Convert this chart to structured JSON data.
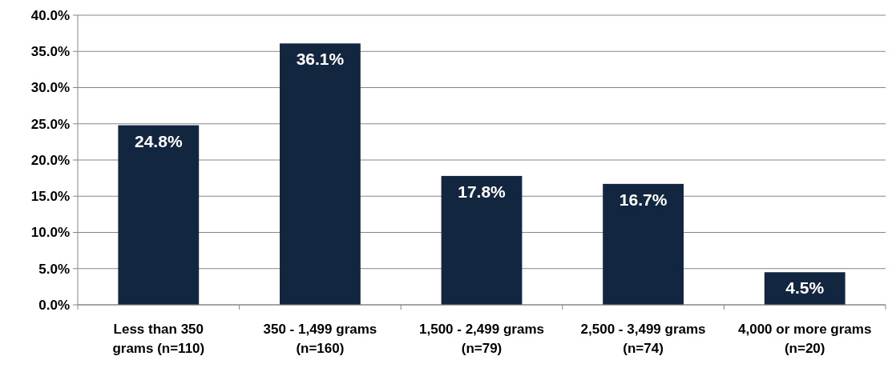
{
  "chart_data": {
    "type": "bar",
    "categories": [
      "Less than 350 grams (n=110)",
      "350 - 1,499 grams (n=160)",
      "1,500 - 2,499 grams (n=79)",
      "2,500 - 3,499 grams (n=74)",
      "4,000 or more grams (n=20)"
    ],
    "values": [
      24.8,
      36.1,
      17.8,
      16.7,
      4.5
    ],
    "value_labels": [
      "24.8%",
      "36.1%",
      "17.8%",
      "16.7%",
      "4.5%"
    ],
    "color": "#13263f",
    "ylim": [
      0,
      40
    ],
    "yticks": [
      {
        "value": 0,
        "label": "0.0%"
      },
      {
        "value": 5,
        "label": "5.0%"
      },
      {
        "value": 10,
        "label": "10.0%"
      },
      {
        "value": 15,
        "label": "15.0%"
      },
      {
        "value": 20,
        "label": "20.0%"
      },
      {
        "value": 25,
        "label": "25.0%"
      },
      {
        "value": 30,
        "label": "30.0%"
      },
      {
        "value": 35,
        "label": "35.0%"
      },
      {
        "value": 40,
        "label": "40.0%"
      }
    ],
    "grid": "y"
  }
}
